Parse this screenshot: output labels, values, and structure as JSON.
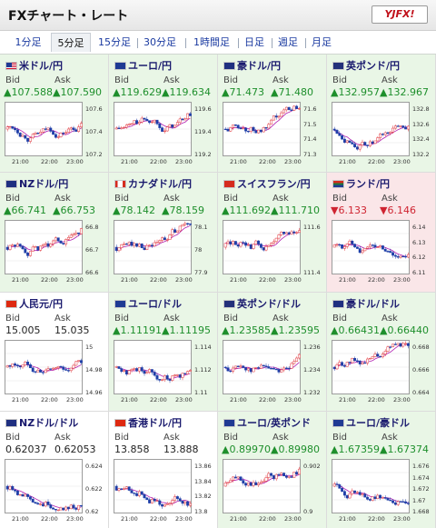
{
  "header": {
    "title": "FXチャート・レート",
    "logo_text": "YJFX!"
  },
  "tabs": [
    {
      "label": "1分足",
      "active": false
    },
    {
      "label": "5分足",
      "active": true
    },
    {
      "label": "15分足",
      "active": false
    },
    {
      "label": "30分足",
      "active": false
    },
    {
      "label": "1時間足",
      "active": false
    },
    {
      "label": "日足",
      "active": false
    },
    {
      "label": "週足",
      "active": false
    },
    {
      "label": "月足",
      "active": false
    }
  ],
  "labels": {
    "bid": "Bid",
    "ask": "Ask"
  },
  "time_labels": [
    "21:00",
    "22:00",
    "23:00"
  ],
  "colors": {
    "up": "#1e8f2c",
    "down": "#cf2431",
    "candle_up": "#e0343a",
    "candle_down": "#1f3fa8",
    "ma": "#b21fb1",
    "cell_up": "#e9f6e6",
    "cell_down": "#fae6e8"
  },
  "pairs": [
    {
      "name": "米ドル/円",
      "flag": "us",
      "bid": "107.588",
      "ask": "107.590",
      "dir": "up",
      "yticks": [
        "107.6",
        "107.4",
        "107.2"
      ]
    },
    {
      "name": "ユーロ/円",
      "flag": "eu",
      "bid": "119.629",
      "ask": "119.634",
      "dir": "up",
      "yticks": [
        "119.6",
        "119.4",
        "119.2"
      ]
    },
    {
      "name": "豪ドル/円",
      "flag": "au",
      "bid": "71.473",
      "ask": "71.480",
      "dir": "up",
      "yticks": [
        "71.6",
        "71.5",
        "71.4",
        "71.3"
      ]
    },
    {
      "name": "英ポンド/円",
      "flag": "gb",
      "bid": "132.957",
      "ask": "132.967",
      "dir": "up",
      "yticks": [
        "132.8",
        "132.6",
        "132.4",
        "132.2"
      ]
    },
    {
      "name": "NZドル/円",
      "flag": "nz",
      "bid": "66.741",
      "ask": "66.753",
      "dir": "up",
      "yticks": [
        "66.8",
        "66.7",
        "66.6"
      ]
    },
    {
      "name": "カナダドル/円",
      "flag": "ca",
      "bid": "78.142",
      "ask": "78.159",
      "dir": "up",
      "yticks": [
        "78.1",
        "78",
        "77.9"
      ]
    },
    {
      "name": "スイスフラン/円",
      "flag": "ch",
      "bid": "111.692",
      "ask": "111.710",
      "dir": "up",
      "yticks": [
        "111.6",
        "111.4"
      ]
    },
    {
      "name": "ランド/円",
      "flag": "za",
      "bid": "6.133",
      "ask": "6.146",
      "dir": "down",
      "yticks": [
        "6.14",
        "6.13",
        "6.12",
        "6.11"
      ]
    },
    {
      "name": "人民元/円",
      "flag": "cn",
      "bid": "15.005",
      "ask": "15.035",
      "dir": "flat",
      "yticks": [
        "15",
        "14.98",
        "14.96"
      ]
    },
    {
      "name": "ユーロ/ドル",
      "flag": "eu",
      "bid": "1.11191",
      "ask": "1.11195",
      "dir": "up",
      "yticks": [
        "1.114",
        "1.112",
        "1.11"
      ]
    },
    {
      "name": "英ポンド/ドル",
      "flag": "gb",
      "bid": "1.23585",
      "ask": "1.23595",
      "dir": "up",
      "yticks": [
        "1.236",
        "1.234",
        "1.232"
      ]
    },
    {
      "name": "豪ドル/ドル",
      "flag": "au",
      "bid": "0.66431",
      "ask": "0.66440",
      "dir": "up",
      "yticks": [
        "0.668",
        "0.666",
        "0.664"
      ]
    },
    {
      "name": "NZドル/ドル",
      "flag": "nz",
      "bid": "0.62037",
      "ask": "0.62053",
      "dir": "flat",
      "yticks": [
        "0.624",
        "0.622",
        "0.62"
      ]
    },
    {
      "name": "香港ドル/円",
      "flag": "hk",
      "bid": "13.858",
      "ask": "13.888",
      "dir": "flat",
      "yticks": [
        "13.86",
        "13.84",
        "13.82",
        "13.8"
      ]
    },
    {
      "name": "ユーロ/英ポンド",
      "flag": "eu",
      "bid": "0.89970",
      "ask": "0.89980",
      "dir": "up",
      "yticks": [
        "0.902",
        "0.9"
      ]
    },
    {
      "name": "ユーロ/豪ドル",
      "flag": "eu",
      "bid": "1.67359",
      "ask": "1.67374",
      "dir": "up",
      "yticks": [
        "1.676",
        "1.674",
        "1.672",
        "1.67",
        "1.668"
      ]
    }
  ]
}
